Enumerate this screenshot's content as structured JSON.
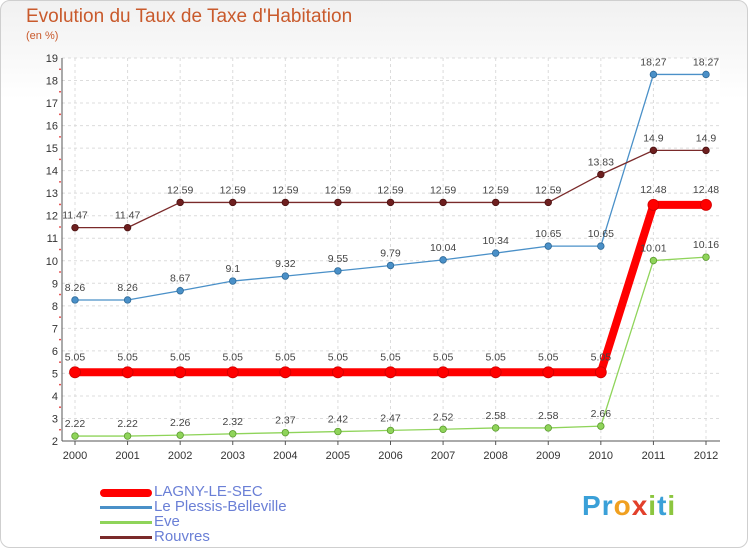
{
  "chart_data": {
    "type": "line",
    "title": "Evolution du Taux de Taxe d'Habitation",
    "subtitle": "(en %)",
    "x": [
      "2000",
      "2001",
      "2002",
      "2003",
      "2004",
      "2005",
      "2006",
      "2007",
      "2008",
      "2009",
      "2010",
      "2011",
      "2012"
    ],
    "ylim": [
      2,
      19
    ],
    "yticks": [
      2,
      3,
      4,
      5,
      6,
      7,
      8,
      9,
      10,
      11,
      12,
      13,
      14,
      15,
      16,
      17,
      18,
      19
    ],
    "grid": true,
    "legend": "bottom-left",
    "series": [
      {
        "name": "LAGNY-LE-SEC",
        "color": "#ff0000",
        "values": [
          5.05,
          5.05,
          5.05,
          5.05,
          5.05,
          5.05,
          5.05,
          5.05,
          5.05,
          5.05,
          5.05,
          12.48,
          12.48
        ],
        "labels": [
          "5.05",
          "5.05",
          "5.05",
          "5.05",
          "5.05",
          "5.05",
          "5.05",
          "5.05",
          "5.05",
          "5.05",
          "5.05",
          "12.48",
          "12.48"
        ]
      },
      {
        "name": "Le Plessis-Belleville",
        "color": "#4a90c8",
        "values": [
          8.26,
          8.26,
          8.67,
          9.1,
          9.32,
          9.55,
          9.79,
          10.04,
          10.34,
          10.65,
          10.65,
          18.27,
          18.27
        ],
        "labels": [
          "8.26",
          "8.26",
          "8.67",
          "9.1",
          "9.32",
          "9.55",
          "9.79",
          "10.04",
          "10.34",
          "10.65",
          "10.65",
          "18.27",
          "18.27"
        ]
      },
      {
        "name": "Eve",
        "color": "#8fd45a",
        "values": [
          2.22,
          2.22,
          2.26,
          2.32,
          2.37,
          2.42,
          2.47,
          2.52,
          2.58,
          2.58,
          2.66,
          10.01,
          10.16
        ],
        "labels": [
          "2.22",
          "2.22",
          "2.26",
          "2.32",
          "2.37",
          "2.42",
          "2.47",
          "2.52",
          "2.58",
          "2.58",
          "2.66",
          "10.01",
          "10.16"
        ]
      },
      {
        "name": "Rouvres",
        "color": "#7a2a2a",
        "values": [
          11.47,
          11.47,
          12.59,
          12.59,
          12.59,
          12.59,
          12.59,
          12.59,
          12.59,
          12.59,
          13.83,
          14.9,
          14.9
        ],
        "labels": [
          "11.47",
          "11.47",
          "12.59",
          "12.59",
          "12.59",
          "12.59",
          "12.59",
          "12.59",
          "12.59",
          "12.59",
          "13.83",
          "14.9",
          "14.9"
        ]
      }
    ]
  },
  "legend": {
    "items": [
      "LAGNY-LE-SEC",
      "Le Plessis-Belleville",
      "Eve",
      "Rouvres"
    ]
  },
  "brand": {
    "letters": [
      "P",
      "r",
      "o",
      "x",
      "i",
      "t",
      "i"
    ],
    "colors": [
      "#3aa0d8",
      "#3aa0d8",
      "#f0a020",
      "#e2402b",
      "#8cc63f",
      "#3aa0d8",
      "#8cc63f"
    ]
  }
}
